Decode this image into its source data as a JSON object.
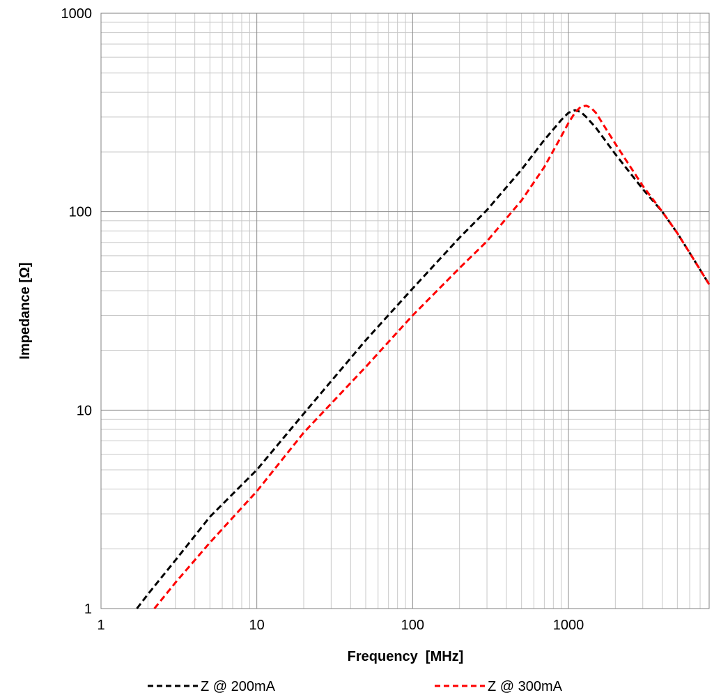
{
  "chart_data": {
    "type": "line",
    "title": "",
    "xlabel": "Frequency  [MHz]",
    "ylabel": "Impedance [Ω]",
    "x_scale": "log",
    "y_scale": "log",
    "xlim": [
      1,
      8000
    ],
    "ylim": [
      1,
      1000
    ],
    "x_ticks": [
      {
        "value": 1,
        "label": "1"
      },
      {
        "value": 10,
        "label": "10"
      },
      {
        "value": 100,
        "label": "100"
      },
      {
        "value": 1000,
        "label": "1000"
      }
    ],
    "y_ticks": [
      {
        "value": 1,
        "label": "1"
      },
      {
        "value": 10,
        "label": "10"
      },
      {
        "value": 100,
        "label": "100"
      },
      {
        "value": 1000,
        "label": "1000"
      }
    ],
    "grid": true,
    "legend_position": "bottom",
    "series": [
      {
        "name": "Z @ 200mA",
        "color": "#000000",
        "line_style": "dashed",
        "x": [
          1.7,
          2,
          3,
          5,
          10,
          20,
          50,
          100,
          200,
          300,
          500,
          700,
          900,
          1000,
          1100,
          1200,
          1300,
          1500,
          2000,
          3000,
          4000,
          5000,
          6000,
          8000
        ],
        "y": [
          1.0,
          1.18,
          1.75,
          2.9,
          5.0,
          9.6,
          22.5,
          41,
          74,
          102,
          163,
          230,
          290,
          315,
          325,
          318,
          300,
          265,
          195,
          130,
          100,
          78,
          62,
          43
        ]
      },
      {
        "name": "Z @ 300mA",
        "color": "#ff0000",
        "line_style": "dashed",
        "x": [
          2.2,
          3,
          5,
          10,
          20,
          50,
          100,
          200,
          300,
          500,
          700,
          900,
          1000,
          1100,
          1200,
          1300,
          1400,
          1500,
          2000,
          3000,
          4000,
          5000,
          6000,
          8000
        ],
        "y": [
          1.0,
          1.35,
          2.15,
          3.9,
          7.7,
          16.5,
          30,
          52,
          71,
          114,
          168,
          240,
          280,
          315,
          338,
          342,
          333,
          315,
          220,
          135,
          100,
          78,
          62,
          43
        ]
      }
    ]
  }
}
